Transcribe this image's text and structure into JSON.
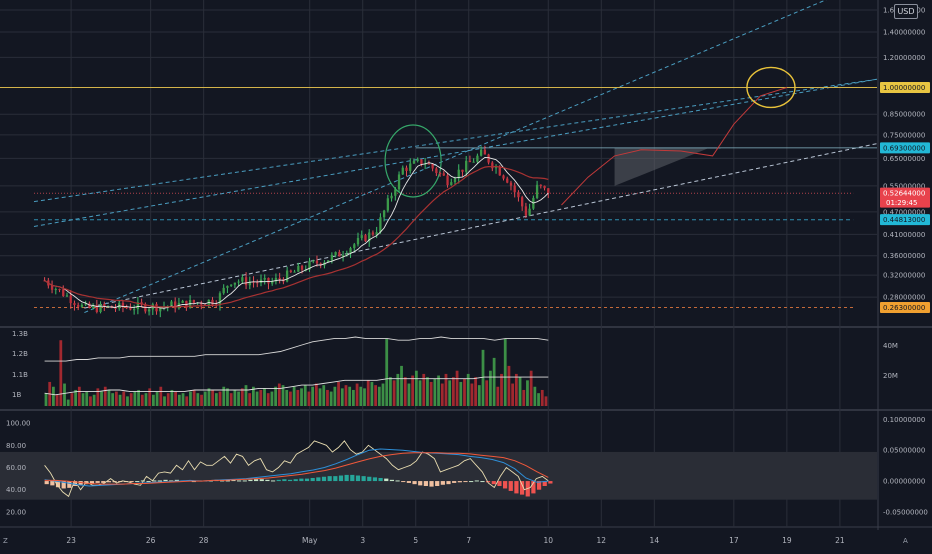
{
  "currency_button": "USD",
  "corner_left": "Z",
  "corner_right": "A",
  "colors": {
    "background": "#131722",
    "up": "#26a69a",
    "up_body": "#3c9a4a",
    "down": "#ef5350",
    "down_body": "#b22833",
    "grid": "#2a2e39",
    "yellow_line": "#d4b44a",
    "cyan_tag": "#00bcd4",
    "red_tag": "#f23645",
    "orange_tag": "#f5a623"
  },
  "chart_data": [
    {
      "type": "candlestick",
      "y_scale": "log",
      "ylim": [
        0.235,
        1.68
      ],
      "y_ticks": [
        "1.60000000",
        "1.40000000",
        "1.20000000",
        "1.00000000",
        "0.85000000",
        "0.75000000",
        "0.65000000",
        "0.55000000",
        "0.47000000",
        "0.41000000",
        "0.36000000",
        "0.32000000",
        "0.28000000"
      ],
      "y_tick_values": [
        1.6,
        1.4,
        1.2,
        1.0,
        0.85,
        0.75,
        0.65,
        0.55,
        0.47,
        0.41,
        0.36,
        0.32,
        0.28
      ],
      "x_ticks": [
        "23",
        "26",
        "28",
        "May",
        "3",
        "5",
        "7",
        "10",
        "12",
        "14",
        "17",
        "19",
        "21"
      ],
      "x_tick_days": [
        -8,
        -5,
        -3,
        1,
        3,
        5,
        7,
        10,
        12,
        14,
        17,
        19,
        21
      ],
      "xlim_days": [
        -9.4,
        22.4
      ],
      "x_unit": "day (April 23 = -8, May 1 = 1)",
      "price_tags": [
        {
          "label": "1.00000000",
          "value": 1.0,
          "style": "yellow"
        },
        {
          "label": "0.69300000",
          "value": 0.693,
          "style": "cyan"
        },
        {
          "label": "0.52644000",
          "value": 0.52644,
          "style": "red",
          "countdown": "01:29:45"
        },
        {
          "label": "0.44813000",
          "value": 0.44813,
          "style": "cyan"
        },
        {
          "label": "0.26300000",
          "value": 0.263,
          "style": "orange"
        }
      ],
      "key_points": [
        {
          "day": -9.0,
          "price": 0.31
        },
        {
          "day": -7.5,
          "price": 0.262
        },
        {
          "day": -4.5,
          "price": 0.265
        },
        {
          "day": -2.5,
          "price": 0.275
        },
        {
          "day": -2.0,
          "price": 0.31
        },
        {
          "day": -0.5,
          "price": 0.305
        },
        {
          "day": 1.0,
          "price": 0.34
        },
        {
          "day": 2.0,
          "price": 0.36
        },
        {
          "day": 3.5,
          "price": 0.42
        },
        {
          "day": 4.5,
          "price": 0.61
        },
        {
          "day": 5.3,
          "price": 0.64
        },
        {
          "day": 6.2,
          "price": 0.57
        },
        {
          "day": 7.5,
          "price": 0.67
        },
        {
          "day": 8.5,
          "price": 0.57
        },
        {
          "day": 9.2,
          "price": 0.46
        },
        {
          "day": 9.6,
          "price": 0.55
        },
        {
          "day": 10.0,
          "price": 0.526
        }
      ]
    },
    {
      "type": "bar",
      "name": "volume",
      "y_ticks": [
        "1.3B",
        "1.2B",
        "1.1B",
        "1B"
      ],
      "y_ticks_right": [
        "40M",
        "20M"
      ],
      "ylim_right": [
        0,
        48
      ],
      "unit": "M",
      "values": [
        8,
        15,
        12,
        7,
        41,
        14,
        4,
        8,
        10,
        12,
        8,
        9,
        6,
        7,
        11,
        9,
        12,
        10,
        8,
        9,
        7,
        9,
        6,
        8,
        9,
        10,
        7,
        8,
        11,
        7,
        9,
        12,
        6,
        8,
        10,
        9,
        7,
        8,
        6,
        9,
        10,
        8,
        7,
        9,
        11,
        10,
        8,
        9,
        12,
        11,
        8,
        10,
        9,
        11,
        13,
        8,
        12,
        9,
        10,
        11,
        8,
        9,
        12,
        14,
        13,
        10,
        9,
        12,
        10,
        11,
        13,
        9,
        12,
        14,
        11,
        13,
        10,
        9,
        12,
        15,
        11,
        13,
        12,
        10,
        14,
        12,
        11,
        16,
        15,
        13,
        12,
        14,
        42,
        18,
        16,
        20,
        25,
        18,
        14,
        19,
        22,
        16,
        20,
        18,
        15,
        17,
        19,
        14,
        20,
        16,
        18,
        22,
        15,
        17,
        20,
        14,
        18,
        13,
        35,
        16,
        22,
        30,
        12,
        20,
        42,
        25,
        14,
        20,
        18,
        10,
        16,
        22,
        12,
        8,
        10,
        6
      ],
      "up_flags": [
        1,
        0,
        1,
        0,
        0,
        1,
        1,
        0,
        1,
        0,
        1,
        1,
        0,
        1,
        0,
        1,
        0,
        1,
        1,
        0,
        1,
        0,
        1,
        0,
        1,
        1,
        0,
        1,
        0,
        1,
        1,
        0,
        1,
        0,
        1,
        0,
        1,
        1,
        0,
        1,
        0,
        1,
        0,
        1,
        1,
        0,
        1,
        0,
        1,
        1,
        0,
        1,
        1,
        0,
        1,
        0,
        1,
        1,
        0,
        1,
        0,
        1,
        1,
        0,
        1,
        1,
        0,
        1,
        0,
        1,
        1,
        0,
        1,
        0,
        1,
        1,
        0,
        1,
        1,
        0,
        1,
        0,
        1,
        1,
        0,
        1,
        1,
        0,
        1,
        0,
        1,
        1,
        1,
        1,
        0,
        1,
        1,
        0,
        1,
        0,
        1,
        1,
        0,
        1,
        0,
        1,
        1,
        0,
        0,
        1,
        0,
        0,
        1,
        0,
        1,
        0,
        0,
        1,
        1,
        0,
        1,
        1,
        0,
        0,
        1,
        0,
        0,
        0,
        1,
        0,
        1,
        0,
        1,
        1,
        0,
        0
      ],
      "ma_values": [
        8,
        7,
        8,
        9,
        9,
        9,
        10,
        10,
        9,
        9,
        9,
        9,
        9,
        9,
        10,
        10,
        10,
        10,
        10,
        10,
        11,
        11,
        11,
        12,
        13,
        13,
        14,
        15,
        16,
        16,
        16,
        16,
        17,
        17,
        17,
        17,
        17,
        17,
        17,
        17,
        17,
        18,
        18,
        18,
        18,
        18,
        18,
        18
      ],
      "vol_ma_long": [
        28,
        28,
        28,
        29,
        29,
        30,
        30,
        30,
        31,
        31,
        31,
        31,
        31,
        31,
        31,
        32,
        32,
        32,
        32,
        32,
        32,
        33,
        34,
        36,
        38,
        40,
        41,
        42,
        42,
        43,
        42,
        42,
        42,
        41,
        41,
        42,
        42,
        43,
        42,
        42,
        42,
        42,
        41,
        42,
        42,
        42,
        42,
        41
      ]
    },
    {
      "type": "line",
      "name": "oscillator",
      "y_ticks_left": [
        "100.00",
        "80.00",
        "60.00",
        "40.00",
        "20.00"
      ],
      "y_tick_values_left": [
        100,
        80,
        60,
        40,
        20
      ],
      "ylim_left": [
        10,
        110
      ],
      "band_left": [
        31,
        74
      ],
      "y_ticks_right": [
        "0.10000000",
        "0.05000000",
        "0.00000000",
        "-0.05000000"
      ],
      "y_tick_values_right": [
        0.1,
        0.05,
        0.0,
        -0.05
      ],
      "ylim_right": [
        -0.068,
        0.112
      ],
      "rsi": [
        62,
        55,
        45,
        38,
        34,
        48,
        40,
        47,
        44,
        44,
        46,
        50,
        46,
        48,
        47,
        45,
        44,
        52,
        48,
        55,
        56,
        55,
        62,
        58,
        66,
        58,
        65,
        62,
        62,
        66,
        70,
        64,
        72,
        70,
        62,
        66,
        68,
        58,
        56,
        60,
        66,
        64,
        72,
        75,
        78,
        84,
        82,
        80,
        74,
        78,
        84,
        76,
        72,
        74,
        80,
        76,
        72,
        68,
        62,
        58,
        60,
        62,
        66,
        74,
        72,
        68,
        56,
        58,
        60,
        62,
        66,
        68,
        62,
        56,
        46,
        42,
        52,
        60,
        56,
        52,
        40,
        42,
        50,
        52,
        48
      ],
      "macd": [
        0.002,
        0.0,
        -0.003,
        -0.006,
        -0.008,
        -0.007,
        -0.006,
        -0.005,
        -0.004,
        -0.003,
        -0.002,
        -0.001,
        0.0,
        0.001,
        0.0,
        0.001,
        0.002,
        0.003,
        0.004,
        0.006,
        0.008,
        0.01,
        0.012,
        0.015,
        0.018,
        0.022,
        0.028,
        0.035,
        0.043,
        0.05,
        0.052,
        0.051,
        0.05,
        0.048,
        0.046,
        0.045,
        0.044,
        0.043,
        0.04,
        0.038,
        0.035,
        0.03,
        0.02,
        0.005,
        -0.002,
        0.0
      ],
      "signal": [
        0.001,
        0.001,
        0.0,
        -0.002,
        -0.004,
        -0.005,
        -0.005,
        -0.005,
        -0.004,
        -0.004,
        -0.003,
        -0.002,
        -0.001,
        0.0,
        0.0,
        0.001,
        0.001,
        0.002,
        0.003,
        0.004,
        0.005,
        0.007,
        0.009,
        0.011,
        0.014,
        0.017,
        0.021,
        0.026,
        0.031,
        0.036,
        0.04,
        0.043,
        0.045,
        0.046,
        0.046,
        0.046,
        0.045,
        0.045,
        0.044,
        0.042,
        0.04,
        0.038,
        0.033,
        0.025,
        0.015,
        0.006
      ],
      "hist": [
        -0.005,
        -0.007,
        -0.01,
        -0.012,
        -0.011,
        -0.008,
        -0.006,
        -0.005,
        -0.004,
        -0.003,
        -0.003,
        -0.002,
        -0.002,
        -0.001,
        -0.001,
        -0.001,
        0.0,
        0.001,
        0.0,
        0.001,
        0.001,
        0.002,
        0.001,
        0.002,
        0.001,
        0.001,
        0.0,
        0.001,
        0.001,
        0.001,
        0.002,
        0.001,
        0.001,
        0.002,
        0.001,
        0.001,
        0.002,
        0.003,
        0.003,
        0.002,
        0.001,
        0.002,
        0.003,
        0.002,
        0.003,
        0.004,
        0.004,
        0.005,
        0.006,
        0.007,
        0.008,
        0.008,
        0.009,
        0.01,
        0.01,
        0.009,
        0.008,
        0.007,
        0.006,
        0.005,
        0.004,
        0.002,
        0.001,
        -0.001,
        -0.003,
        -0.005,
        -0.007,
        -0.008,
        -0.009,
        -0.008,
        -0.006,
        -0.005,
        -0.003,
        -0.002,
        -0.001,
        0.0,
        0.001,
        0.0,
        -0.002,
        -0.005,
        -0.008,
        -0.012,
        -0.016,
        -0.02,
        -0.022,
        -0.025,
        -0.02,
        -0.014,
        -0.008,
        -0.004
      ]
    }
  ]
}
